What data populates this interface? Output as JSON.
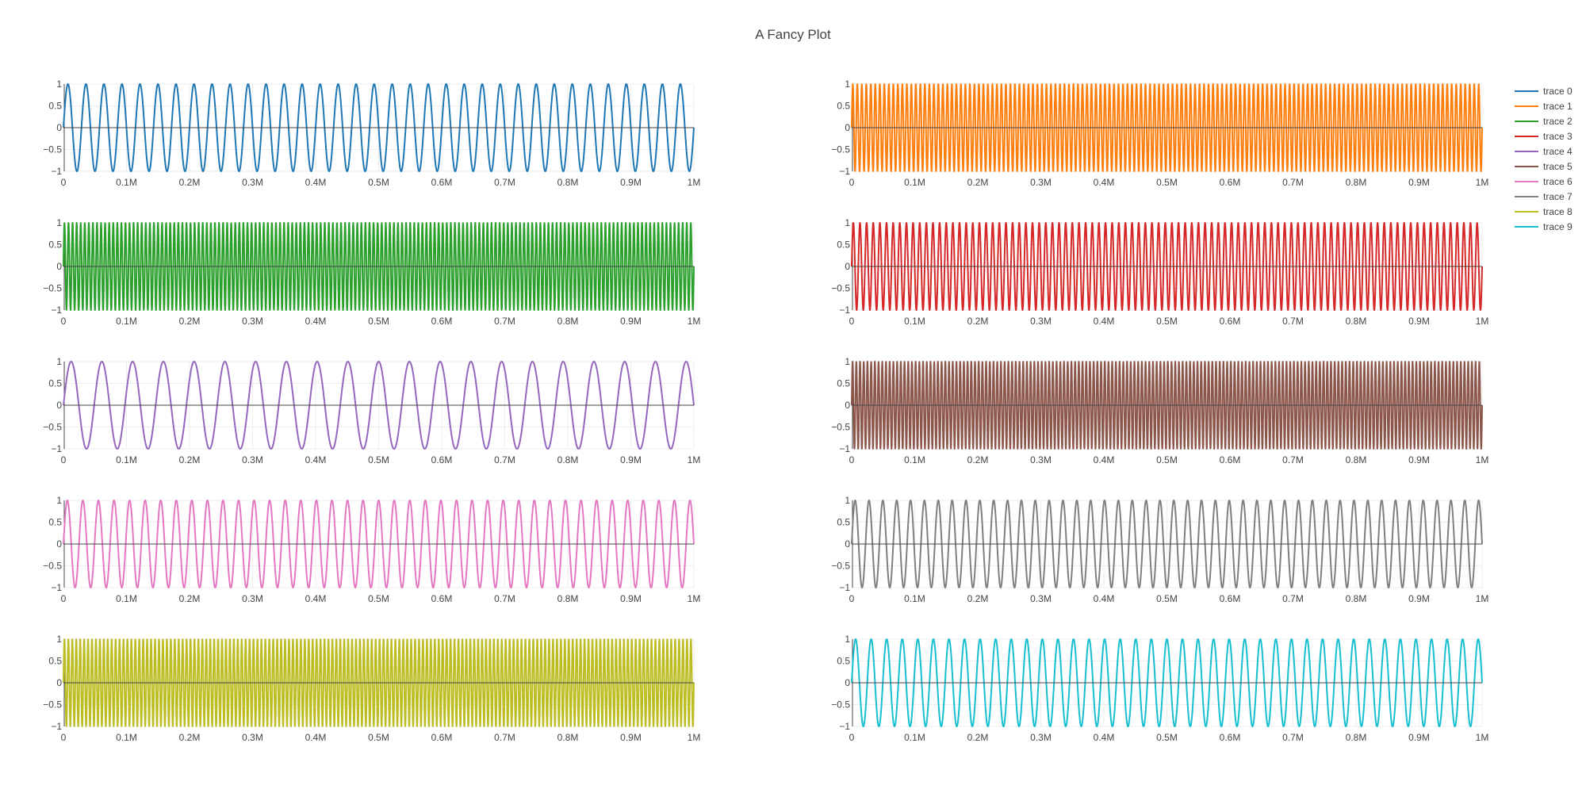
{
  "chart_data": {
    "type": "line",
    "title": "A Fancy Plot",
    "layout": "5x2 subplot grid, shared legend at top-right",
    "grid": true,
    "legend_position": "top-right",
    "xlim": [
      0,
      1000000
    ],
    "ylim": [
      -1,
      1
    ],
    "x_ticks": [
      0,
      100000,
      200000,
      300000,
      400000,
      500000,
      600000,
      700000,
      800000,
      900000,
      1000000
    ],
    "x_tick_labels": [
      "0",
      "0.1M",
      "0.2M",
      "0.3M",
      "0.4M",
      "0.5M",
      "0.6M",
      "0.7M",
      "0.8M",
      "0.9M",
      "1M"
    ],
    "y_ticks": [
      -1,
      -0.5,
      0,
      0.5,
      1
    ],
    "y_tick_labels": [
      "−1",
      "−0.5",
      "0",
      "0.5",
      "1"
    ],
    "series": [
      {
        "name": "trace 0",
        "color": "#1f77b4",
        "function": "sin",
        "cycles": 35
      },
      {
        "name": "trace 1",
        "color": "#ff7f0e",
        "function": "sin",
        "cycles": 140
      },
      {
        "name": "trace 2",
        "color": "#2ca02c",
        "function": "sin",
        "cycles": 155
      },
      {
        "name": "trace 3",
        "color": "#d62728",
        "function": "sin",
        "cycles": 95
      },
      {
        "name": "trace 4",
        "color": "#9467bd",
        "function": "sin",
        "cycles": 20.5
      },
      {
        "name": "trace 5",
        "color": "#8c564b",
        "function": "sin",
        "cycles": 170
      },
      {
        "name": "trace 6",
        "color": "#e377c2",
        "function": "sin",
        "cycles": 40.5
      },
      {
        "name": "trace 7",
        "color": "#7f7f7f",
        "function": "sin",
        "cycles": 45.5
      },
      {
        "name": "trace 8",
        "color": "#bcbd22",
        "function": "sin",
        "cycles": 160
      },
      {
        "name": "trace 9",
        "color": "#17becf",
        "function": "sin",
        "cycles": 40.5
      }
    ]
  }
}
